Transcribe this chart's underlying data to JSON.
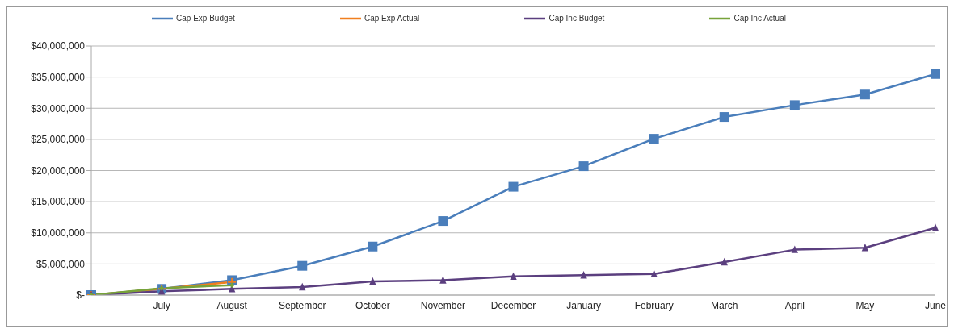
{
  "chart_data": {
    "type": "line",
    "categories": [
      null,
      "July",
      "August",
      "September",
      "October",
      "November",
      "December",
      "January",
      "February",
      "March",
      "April",
      "May",
      "June"
    ],
    "series": [
      {
        "name": "Cap Exp Budget",
        "color": "#4a7ebb",
        "marker": "square",
        "values": [
          0,
          1000000,
          2400000,
          4700000,
          7800000,
          11900000,
          17400000,
          20700000,
          25100000,
          28600000,
          30500000,
          32200000,
          35500000
        ]
      },
      {
        "name": "Cap Exp Actual",
        "color": "#f07f1e",
        "marker": "cross",
        "values": [
          0,
          1000000,
          2100000,
          null,
          null,
          null,
          null,
          null,
          null,
          null,
          null,
          null,
          null
        ]
      },
      {
        "name": "Cap Inc Budget",
        "color": "#5b3f7f",
        "marker": "triangle",
        "values": [
          0,
          600000,
          1000000,
          1300000,
          2200000,
          2400000,
          3000000,
          3200000,
          3400000,
          5300000,
          7300000,
          7600000,
          10800000
        ]
      },
      {
        "name": "Cap Inc Actual",
        "color": "#77a33a",
        "marker": "diamond",
        "values": [
          0,
          1100000,
          1600000,
          null,
          null,
          null,
          null,
          null,
          null,
          null,
          null,
          null,
          null
        ]
      }
    ],
    "ylim": [
      0,
      40000000
    ],
    "yticks": [
      {
        "value": 0,
        "label": "$-"
      },
      {
        "value": 5000000,
        "label": "$5,000,000"
      },
      {
        "value": 10000000,
        "label": "$10,000,000"
      },
      {
        "value": 15000000,
        "label": "$15,000,000"
      },
      {
        "value": 20000000,
        "label": "$20,000,000"
      },
      {
        "value": 25000000,
        "label": "$25,000,000"
      },
      {
        "value": 30000000,
        "label": "$30,000,000"
      },
      {
        "value": 35000000,
        "label": "$35,000,000"
      },
      {
        "value": 40000000,
        "label": "$40,000,000"
      }
    ],
    "grid": "y",
    "legend": "top",
    "line_style": "solid"
  }
}
